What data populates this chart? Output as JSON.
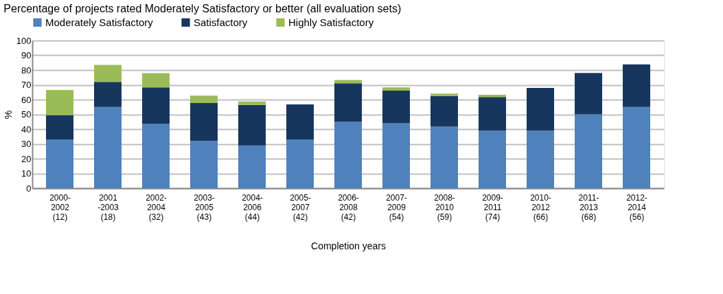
{
  "chart_data": {
    "type": "bar",
    "stacked": true,
    "title": "Percentage of projects rated Moderately Satisfactory or better (all evaluation sets)",
    "xlabel": "Completion years",
    "ylabel": "%",
    "categories": [
      "2000-\n2002\n(12)",
      "2001\n-2003\n(18)",
      "2002-\n2004\n(32)",
      "2003-\n2005\n(43)",
      "2004-\n2006\n(44)",
      "2005-\n2007\n(42)",
      "2006-\n2008\n(42)",
      "2007-\n2009\n(54)",
      "2008-\n2010\n(59)",
      "2009-\n2011\n(74)",
      "2010-\n2012\n(66)",
      "2011-\n2013\n(68)",
      "2012-\n2014\n(56)"
    ],
    "series": [
      {
        "name": "Moderately Satisfactory",
        "color": "#4f81bd",
        "values": [
          33,
          55,
          43.5,
          32,
          29,
          33,
          45,
          44,
          41.7,
          39,
          39,
          50,
          55
        ]
      },
      {
        "name": "Satisfactory",
        "color": "#17365d",
        "values": [
          16.5,
          17,
          24.7,
          25.7,
          27.4,
          23.8,
          26,
          22,
          20.7,
          22.7,
          28.9,
          28,
          28.8
        ]
      },
      {
        "name": "Highly Satisfactory",
        "color": "#9bbb59",
        "values": [
          17,
          11.5,
          9.7,
          5,
          2.3,
          null,
          2.3,
          2.2,
          1.7,
          1.5,
          null,
          null,
          null
        ]
      }
    ],
    "ylim": [
      0,
      100
    ],
    "yticks": [
      0,
      10,
      20,
      30,
      40,
      50,
      60,
      70,
      80,
      90,
      100
    ],
    "grid": "y",
    "legend": "top"
  }
}
